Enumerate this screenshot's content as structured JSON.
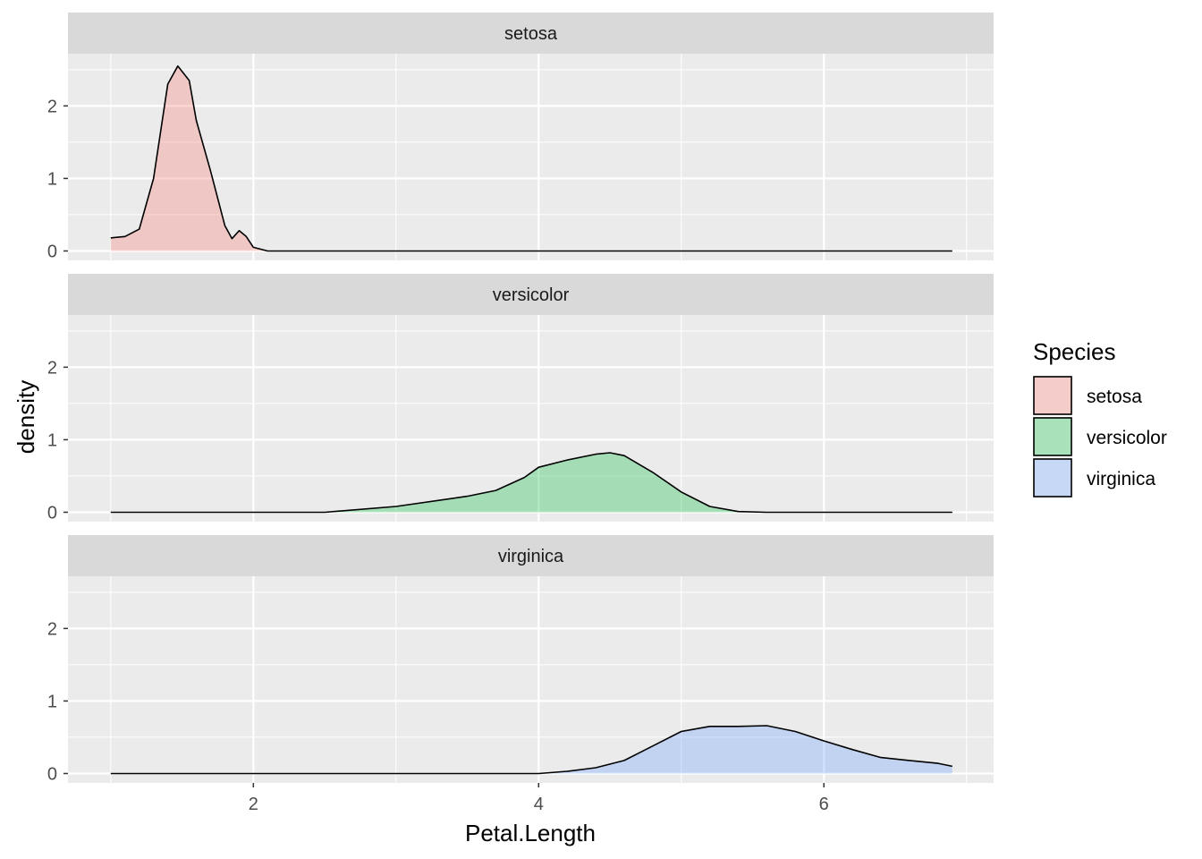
{
  "chart_data": {
    "type": "area",
    "subtype": "faceted density",
    "xlabel": "Petal.Length",
    "ylabel": "density",
    "xlim": [
      0.7,
      7.19
    ],
    "ylim": [
      -0.13,
      2.72
    ],
    "x_ticks": [
      2,
      4,
      6
    ],
    "x_tick_labels": [
      "2",
      "4",
      "6"
    ],
    "y_ticks": [
      0,
      1,
      2
    ],
    "y_tick_labels": [
      "0",
      "1",
      "2"
    ],
    "grid": true,
    "legend": {
      "title": "Species",
      "placement": "right",
      "entries": [
        "setosa",
        "versicolor",
        "virginica"
      ]
    },
    "facets": [
      "setosa",
      "versicolor",
      "virginica"
    ],
    "series": [
      {
        "name": "setosa",
        "color": "#F8766D",
        "points": [
          [
            1.0,
            0.18
          ],
          [
            1.1,
            0.2
          ],
          [
            1.2,
            0.3
          ],
          [
            1.3,
            1.0
          ],
          [
            1.4,
            2.3
          ],
          [
            1.47,
            2.55
          ],
          [
            1.55,
            2.35
          ],
          [
            1.6,
            1.8
          ],
          [
            1.7,
            1.1
          ],
          [
            1.8,
            0.35
          ],
          [
            1.85,
            0.17
          ],
          [
            1.9,
            0.28
          ],
          [
            1.95,
            0.2
          ],
          [
            2.0,
            0.05
          ],
          [
            2.1,
            0.0
          ],
          [
            6.9,
            0.0
          ]
        ]
      },
      {
        "name": "versicolor",
        "color": "#00BA38",
        "points": [
          [
            1.0,
            0.0
          ],
          [
            2.5,
            0.0
          ],
          [
            3.0,
            0.08
          ],
          [
            3.5,
            0.22
          ],
          [
            3.7,
            0.3
          ],
          [
            3.9,
            0.48
          ],
          [
            4.0,
            0.62
          ],
          [
            4.2,
            0.72
          ],
          [
            4.4,
            0.8
          ],
          [
            4.5,
            0.82
          ],
          [
            4.6,
            0.78
          ],
          [
            4.8,
            0.55
          ],
          [
            5.0,
            0.28
          ],
          [
            5.2,
            0.08
          ],
          [
            5.4,
            0.01
          ],
          [
            5.6,
            0.0
          ],
          [
            6.9,
            0.0
          ]
        ]
      },
      {
        "name": "virginica",
        "color": "#619CFF",
        "points": [
          [
            1.0,
            0.0
          ],
          [
            4.0,
            0.0
          ],
          [
            4.2,
            0.03
          ],
          [
            4.4,
            0.08
          ],
          [
            4.6,
            0.18
          ],
          [
            4.8,
            0.38
          ],
          [
            5.0,
            0.58
          ],
          [
            5.2,
            0.65
          ],
          [
            5.4,
            0.65
          ],
          [
            5.6,
            0.66
          ],
          [
            5.8,
            0.58
          ],
          [
            6.0,
            0.45
          ],
          [
            6.2,
            0.33
          ],
          [
            6.4,
            0.22
          ],
          [
            6.6,
            0.18
          ],
          [
            6.8,
            0.14
          ],
          [
            6.9,
            0.1
          ]
        ]
      }
    ]
  }
}
